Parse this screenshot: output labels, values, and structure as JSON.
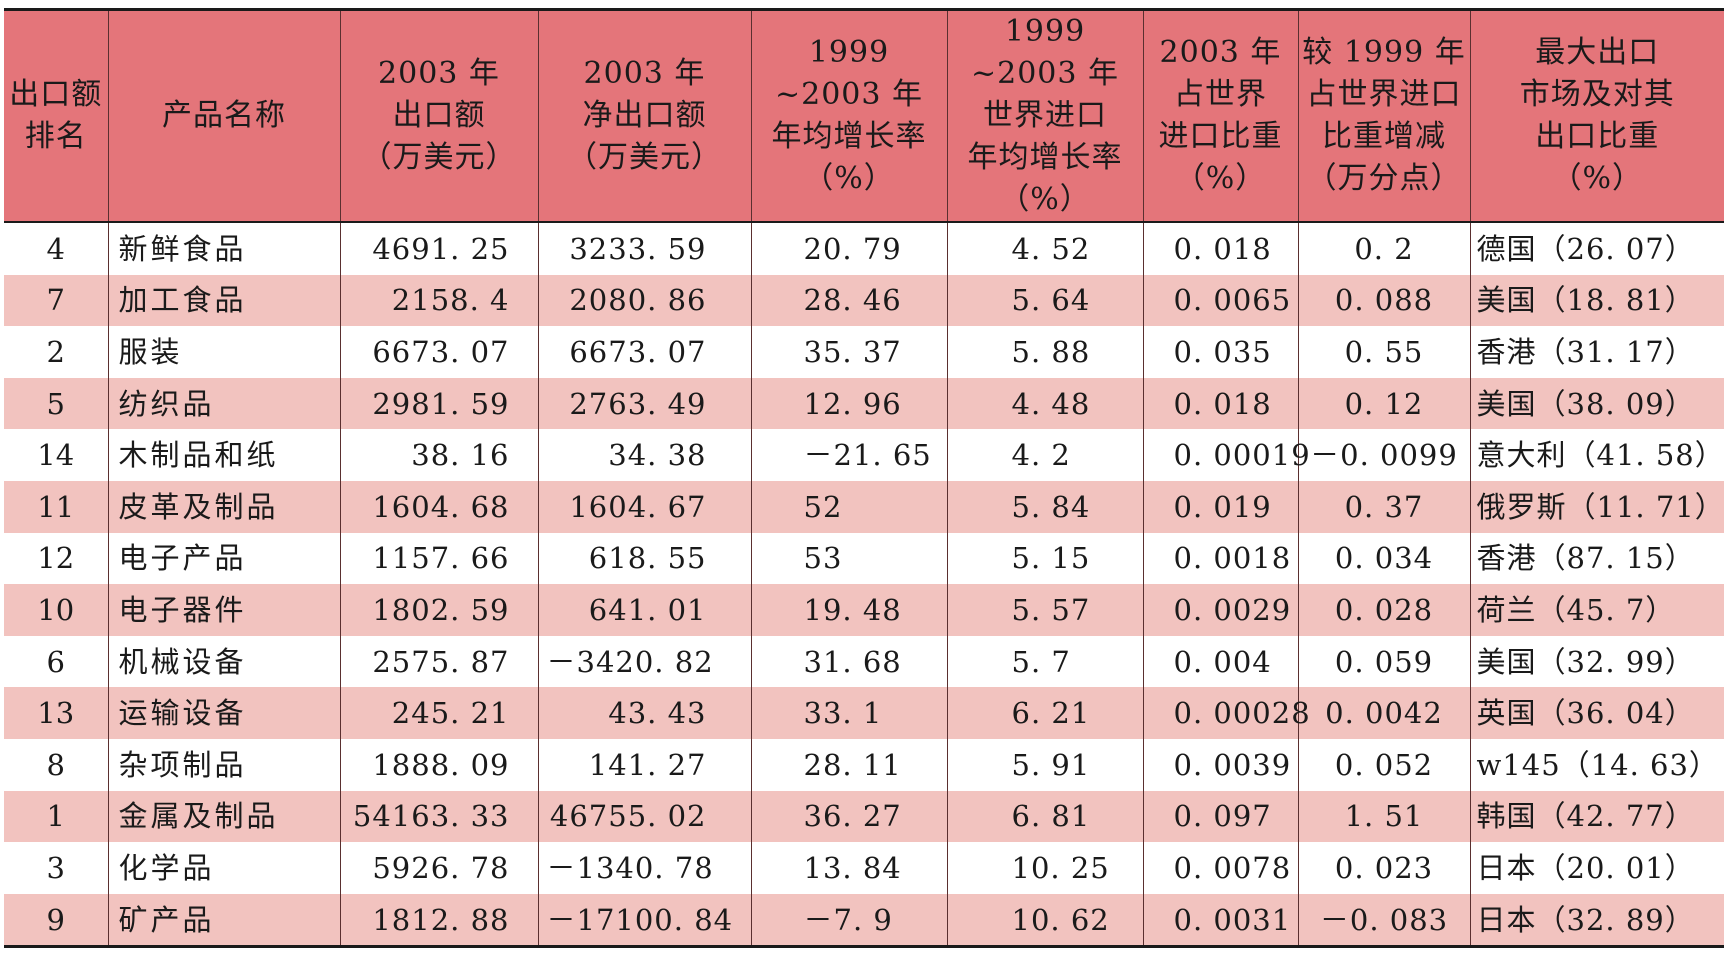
{
  "table": {
    "headers": [
      "出口额\n排名",
      "产品名称",
      "2003 年\n出口额\n（万美元）",
      "2003 年\n净出口额\n（万美元）",
      "1999 ~2003 年\n年均增长率\n（%）",
      "1999 ~2003 年\n世界进口\n年均增长率\n（%）",
      "2003 年\n占世界\n进口比重\n（%）",
      "较 1999 年\n占世界进口\n比重增减\n（万分点）",
      "最大出口\n市场及对其\n出口比重\n（%）"
    ],
    "rows": [
      [
        "4",
        "新鲜食品",
        "4691. 25",
        "3233. 59",
        "20. 79",
        "4. 52",
        "0. 018",
        "0. 2",
        "德国（26. 07）"
      ],
      [
        "7",
        "加工食品",
        "2158. 4",
        "2080. 86",
        "28. 46",
        "5. 64",
        "0. 0065",
        "0. 088",
        "美国（18. 81）"
      ],
      [
        "2",
        "服装",
        "6673. 07",
        "6673. 07",
        "35. 37",
        "5. 88",
        "0. 035",
        "0. 55",
        "香港（31. 17）"
      ],
      [
        "5",
        "纺织品",
        "2981. 59",
        "2763. 49",
        "12. 96",
        "4. 48",
        "0. 018",
        "0. 12",
        "美国（38. 09）"
      ],
      [
        "14",
        "木制品和纸",
        "38. 16",
        "34. 38",
        "－21. 65",
        "4. 2",
        "0. 00019",
        "－0. 0099",
        "意大利（41. 58）"
      ],
      [
        "11",
        "皮革及制品",
        "1604. 68",
        "1604. 67",
        "52",
        "5. 84",
        "0. 019",
        "0. 37",
        "俄罗斯（11. 71）"
      ],
      [
        "12",
        "电子产品",
        "1157. 66",
        "618. 55",
        "53",
        "5. 15",
        "0. 0018",
        "0. 034",
        "香港（87. 15）"
      ],
      [
        "10",
        "电子器件",
        "1802. 59",
        "641. 01",
        "19. 48",
        "5. 57",
        "0. 0029",
        "0. 028",
        "荷兰（45. 7）"
      ],
      [
        "6",
        "机械设备",
        "2575. 87",
        "－3420. 82",
        "31. 68",
        "5. 7",
        "0. 004",
        "0. 059",
        "美国（32. 99）"
      ],
      [
        "13",
        "运输设备",
        "245. 21",
        "43. 43",
        "33. 1",
        "6. 21",
        "0. 00028",
        "0. 0042",
        "英国（36. 04）"
      ],
      [
        "8",
        "杂项制品",
        "1888. 09",
        "141. 27",
        "28. 11",
        "5. 91",
        "0. 0039",
        "0. 052",
        "w145（14. 63）"
      ],
      [
        "1",
        "金属及制品",
        "54163. 33",
        "46755. 02",
        "36. 27",
        "6. 81",
        "0. 097",
        "1. 51",
        "韩国（42. 77）"
      ],
      [
        "3",
        "化学品",
        "5926. 78",
        "－1340. 78",
        "13. 84",
        "10. 25",
        "0. 0078",
        "0. 023",
        "日本（20. 01）"
      ],
      [
        "9",
        "矿产品",
        "1812. 88",
        "－17100. 84",
        "－7. 9",
        "10. 62",
        "0. 0031",
        "－0. 083",
        "日本（32. 89）"
      ]
    ]
  },
  "colors": {
    "header_bg": "#e4757a",
    "shaded_row_bg": "#f2c3bf",
    "rule": "#1a1a1a"
  }
}
